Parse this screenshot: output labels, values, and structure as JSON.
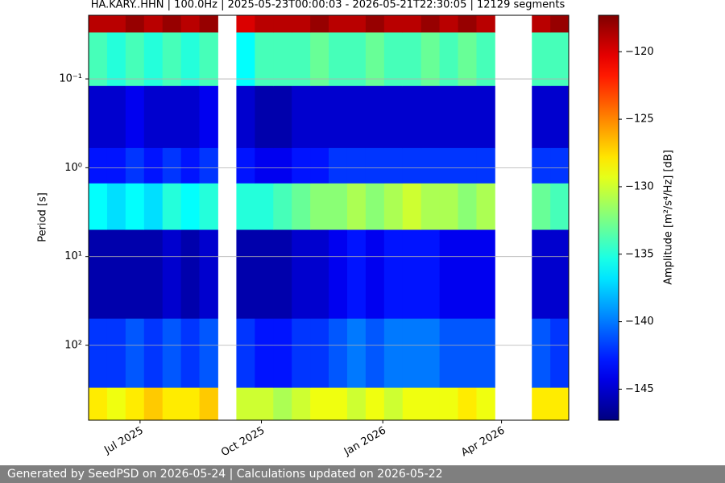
{
  "chart_data": {
    "type": "spectrogram",
    "title": "HA.KARY..HHN | 100.0Hz | 2025-05-23T00:00:03 - 2026-05-21T22:30:05 | 12129 segments",
    "ylabel": "Period [s]",
    "colorbar_label": "Amplitude [m²/s⁴/Hz] [dB]",
    "colormap": "jet",
    "yscale": "log",
    "yinverted": true,
    "grid": "y",
    "xlim": [
      "2025-05-23T00:00:03",
      "2026-05-21T22:30:05"
    ],
    "ylim": [
      0.0192,
      697
    ],
    "clim": [
      -147.3,
      -117.3
    ],
    "xticks": [
      {
        "value": "2025-07-01",
        "label": "Jul 2025"
      },
      {
        "value": "2025-10-01",
        "label": "Oct 2025"
      },
      {
        "value": "2026-01-01",
        "label": "Jan 2026"
      },
      {
        "value": "2026-04-01",
        "label": "Apr 2026"
      }
    ],
    "yticks": [
      {
        "value": 0.1,
        "label": "10⁻¹"
      },
      {
        "value": 1,
        "label": "10⁰"
      },
      {
        "value": 10,
        "label": "10¹"
      },
      {
        "value": 100,
        "label": "10²"
      }
    ],
    "cticks": [
      {
        "value": -120,
        "label": "−120"
      },
      {
        "value": -125,
        "label": "−125"
      },
      {
        "value": -130,
        "label": "−130"
      },
      {
        "value": -135,
        "label": "−135"
      },
      {
        "value": -140,
        "label": "−140"
      },
      {
        "value": -145,
        "label": "−145"
      }
    ],
    "x": [
      "2025-05-23",
      "2025-06-06",
      "2025-06-20",
      "2025-07-04",
      "2025-07-18",
      "2025-08-01",
      "2025-08-15",
      "2025-08-29",
      "2025-09-12",
      "2025-09-26",
      "2025-10-10",
      "2025-10-24",
      "2025-11-07",
      "2025-11-21",
      "2025-12-05",
      "2025-12-19",
      "2026-01-02",
      "2026-01-16",
      "2026-01-30",
      "2026-02-13",
      "2026-02-27",
      "2026-03-13",
      "2026-03-27",
      "2026-04-10",
      "2026-04-24",
      "2026-05-08",
      "2026-05-22"
    ],
    "y": [
      0.0192,
      0.03,
      0.12,
      0.6,
      1.5,
      5,
      50,
      300,
      697
    ],
    "values": [
      [
        -119,
        -134,
        -145,
        -143,
        -136,
        -146,
        -142,
        -128
      ],
      [
        -119,
        -135,
        -145,
        -143,
        -137,
        -146,
        -142,
        -129
      ],
      [
        -118,
        -134,
        -144,
        -142,
        -136,
        -146,
        -141,
        -128
      ],
      [
        -119,
        -135,
        -145,
        -143,
        -137,
        -146,
        -142,
        -127
      ],
      [
        -118,
        -134,
        -145,
        -142,
        -135,
        -145,
        -141,
        -128
      ],
      [
        -119,
        -135,
        -145,
        -143,
        -136,
        -146,
        -142,
        -128
      ],
      [
        -118,
        -134,
        -144,
        -142,
        -135,
        -145,
        -141,
        -127
      ],
      null,
      [
        -120,
        -136,
        -145,
        -143,
        -135,
        -146,
        -142,
        -130
      ],
      [
        -119,
        -134,
        -146,
        -144,
        -135,
        -146,
        -143,
        -130
      ],
      [
        -119,
        -134,
        -146,
        -144,
        -134,
        -146,
        -143,
        -131
      ],
      [
        -119,
        -134,
        -145,
        -143,
        -133,
        -145,
        -142,
        -130
      ],
      [
        -118,
        -133,
        -145,
        -143,
        -132,
        -145,
        -142,
        -129
      ],
      [
        -119,
        -134,
        -145,
        -142,
        -132,
        -144,
        -141,
        -129
      ],
      [
        -119,
        -134,
        -145,
        -142,
        -131,
        -143,
        -140,
        -130
      ],
      [
        -118,
        -133,
        -145,
        -142,
        -132,
        -144,
        -141,
        -129
      ],
      [
        -119,
        -134,
        -145,
        -142,
        -131,
        -143,
        -140,
        -130
      ],
      [
        -119,
        -134,
        -145,
        -142,
        -130,
        -143,
        -140,
        -129
      ],
      [
        -118,
        -133,
        -145,
        -142,
        -131,
        -143,
        -140,
        -129
      ],
      [
        -119,
        -134,
        -145,
        -142,
        -131,
        -144,
        -141,
        -129
      ],
      [
        -118,
        -133,
        -145,
        -142,
        -132,
        -144,
        -141,
        -128
      ],
      [
        -119,
        -134,
        -145,
        -142,
        -131,
        -144,
        -141,
        -129
      ],
      null,
      null,
      [
        -119,
        -134,
        -145,
        -142,
        -133,
        -145,
        -141,
        -128
      ],
      [
        -118,
        -134,
        -145,
        -142,
        -134,
        -145,
        -142,
        -128
      ]
    ]
  },
  "footer": {
    "text": "Generated by SeedPSD on 2026-05-24 | Calculations updated on 2026-05-22"
  }
}
